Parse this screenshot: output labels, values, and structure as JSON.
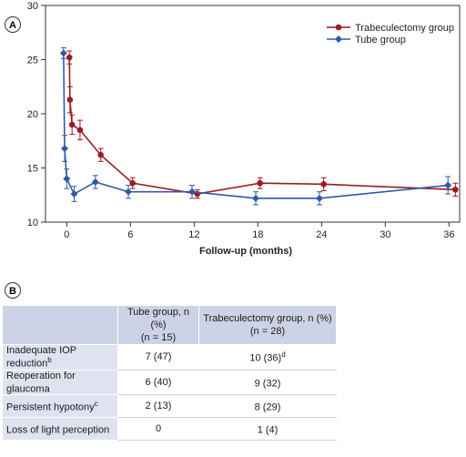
{
  "panel_a_label": "A",
  "panel_b_label": "B",
  "chart_data": {
    "type": "line",
    "title": "",
    "xlabel": "Follow-up (months)",
    "ylabel": "",
    "xlim": [
      -2,
      37
    ],
    "ylim": [
      10,
      30
    ],
    "x_ticks": [
      0,
      6,
      12,
      18,
      24,
      30,
      36
    ],
    "y_ticks": [
      10,
      15,
      20,
      25,
      30
    ],
    "legend_position": "top-right",
    "error_bars": true,
    "series": [
      {
        "name": "Trabeculectomy group",
        "color": "#9b1b24",
        "marker": "circle",
        "points": [
          {
            "x": 0.25,
            "y": 25.2,
            "err": 0.6
          },
          {
            "x": 0.3,
            "y": 21.3,
            "err": 1.2
          },
          {
            "x": 0.5,
            "y": 19.0,
            "err": 0.9
          },
          {
            "x": 1.25,
            "y": 18.5,
            "err": 0.9
          },
          {
            "x": 3.2,
            "y": 16.2,
            "err": 0.6
          },
          {
            "x": 6.2,
            "y": 13.6,
            "err": 0.5
          },
          {
            "x": 12.3,
            "y": 12.6,
            "err": 0.4
          },
          {
            "x": 18.2,
            "y": 13.6,
            "err": 0.5
          },
          {
            "x": 24.2,
            "y": 13.5,
            "err": 0.6
          },
          {
            "x": 36.6,
            "y": 13.0,
            "err": 0.6
          }
        ]
      },
      {
        "name": "Tube group",
        "color": "#2f5aa8",
        "marker": "diamond",
        "points": [
          {
            "x": -0.3,
            "y": 25.6,
            "err": 0.5
          },
          {
            "x": -0.2,
            "y": 16.8,
            "err": 1.2
          },
          {
            "x": 0.0,
            "y": 14.0,
            "err": 0.9
          },
          {
            "x": 0.7,
            "y": 12.6,
            "err": 0.7
          },
          {
            "x": 2.7,
            "y": 13.7,
            "err": 0.6
          },
          {
            "x": 5.8,
            "y": 12.8,
            "err": 0.6
          },
          {
            "x": 11.8,
            "y": 12.8,
            "err": 0.6
          },
          {
            "x": 17.8,
            "y": 12.2,
            "err": 0.6
          },
          {
            "x": 23.8,
            "y": 12.2,
            "err": 0.6
          },
          {
            "x": 35.9,
            "y": 13.4,
            "err": 0.8
          }
        ]
      }
    ]
  },
  "table": {
    "header": {
      "tube_line1": "Tube group, n (%)",
      "tube_line2": "(n = 15)",
      "trab_line1": "Trabeculectomy group, n (%)",
      "trab_line2": "(n = 28)"
    },
    "rows": [
      {
        "label": "Inadequate IOP reduction",
        "label_sup": "b",
        "tube": "7 (47)",
        "trab": "10 (36)",
        "trab_sup": "d"
      },
      {
        "label": "Reoperation for glaucoma",
        "label_sup": "",
        "tube": "6 (40)",
        "trab": "9 (32)",
        "trab_sup": ""
      },
      {
        "label": "Persistent hypotony",
        "label_sup": "c",
        "tube": "2 (13)",
        "trab": "8 (29)",
        "trab_sup": ""
      },
      {
        "label": "Loss of light perception",
        "label_sup": "",
        "tube": "0",
        "trab": "1 (4)",
        "trab_sup": ""
      }
    ]
  }
}
